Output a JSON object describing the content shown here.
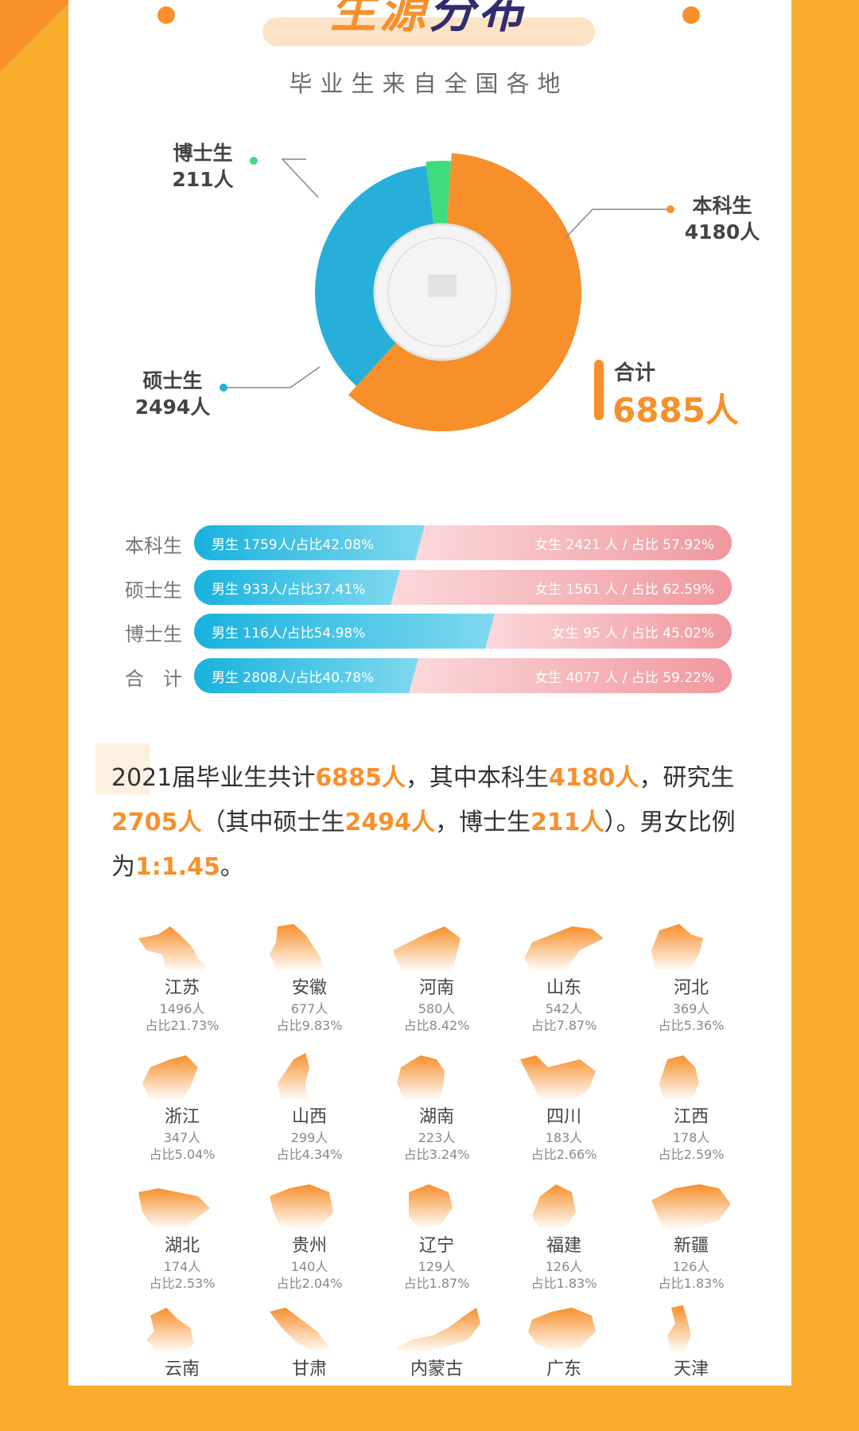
{
  "header": {
    "title_a": "生源",
    "title_b": "分布",
    "subtitle": "毕业生来自全国各地"
  },
  "chart_data": [
    {
      "type": "pie",
      "categories": [
        "本科生",
        "硕士生",
        "博士生"
      ],
      "values": [
        4180,
        2494,
        211
      ],
      "value_labels": [
        "4180人",
        "2494人",
        "211人"
      ],
      "colors": [
        "#f7902b",
        "#26afd9",
        "#3fdc7e"
      ],
      "total_label": "合计",
      "total_value": "6885人"
    },
    {
      "type": "bar",
      "stacked": true,
      "categories": [
        "本科生",
        "硕士生",
        "博士生",
        "合　计"
      ],
      "series": [
        {
          "name": "男生",
          "values": [
            1759,
            933,
            116,
            2808
          ],
          "share": [
            42.08,
            37.41,
            54.98,
            40.78
          ],
          "labels": [
            "男生 1759人/占比42.08%",
            "男生 933人/占比37.41%",
            "男生 116人/占比54.98%",
            "男生 2808人/占比40.78%"
          ],
          "color": "#18b2de"
        },
        {
          "name": "女生",
          "values": [
            2421,
            1561,
            95,
            4077
          ],
          "share": [
            57.92,
            62.59,
            45.02,
            59.22
          ],
          "labels": [
            "女生 2421 人 / 占比 57.92%",
            "女生 1561 人 / 占比 62.59%",
            "女生 95 人 / 占比 45.02%",
            "女生 4077 人 / 占比 59.22%"
          ],
          "color": "#f0989f"
        }
      ]
    }
  ],
  "summary": {
    "parts": [
      "2021届毕业生共计",
      "6885人",
      "，其中本科生",
      "4180人",
      "，研究生",
      "2705人",
      "（其中硕士生",
      "2494人",
      "，博士生",
      "211人",
      "）。男女比例为",
      "1:1.45",
      "。"
    ]
  },
  "provinces": [
    {
      "name": "江苏",
      "count": "1496人",
      "pct": "占比21.73%"
    },
    {
      "name": "安徽",
      "count": "677人",
      "pct": "占比9.83%"
    },
    {
      "name": "河南",
      "count": "580人",
      "pct": "占比8.42%"
    },
    {
      "name": "山东",
      "count": "542人",
      "pct": "占比7.87%"
    },
    {
      "name": "河北",
      "count": "369人",
      "pct": "占比5.36%"
    },
    {
      "name": "浙江",
      "count": "347人",
      "pct": "占比5.04%"
    },
    {
      "name": "山西",
      "count": "299人",
      "pct": "占比4.34%"
    },
    {
      "name": "湖南",
      "count": "223人",
      "pct": "占比3.24%"
    },
    {
      "name": "四川",
      "count": "183人",
      "pct": "占比2.66%"
    },
    {
      "name": "江西",
      "count": "178人",
      "pct": "占比2.59%"
    },
    {
      "name": "湖北",
      "count": "174人",
      "pct": "占比2.53%"
    },
    {
      "name": "贵州",
      "count": "140人",
      "pct": "占比2.04%"
    },
    {
      "name": "辽宁",
      "count": "129人",
      "pct": "占比1.87%"
    },
    {
      "name": "福建",
      "count": "126人",
      "pct": "占比1.83%"
    },
    {
      "name": "新疆",
      "count": "126人",
      "pct": "占比1.83%"
    },
    {
      "name": "云南"
    },
    {
      "name": "甘肃"
    },
    {
      "name": "内蒙古"
    },
    {
      "name": "广东"
    },
    {
      "name": "天津"
    }
  ],
  "colors": {
    "accent": "#f7902b",
    "background": "#f8ab2c",
    "male": "#18b2de",
    "female": "#f0989f",
    "phd": "#3fdc7e"
  }
}
